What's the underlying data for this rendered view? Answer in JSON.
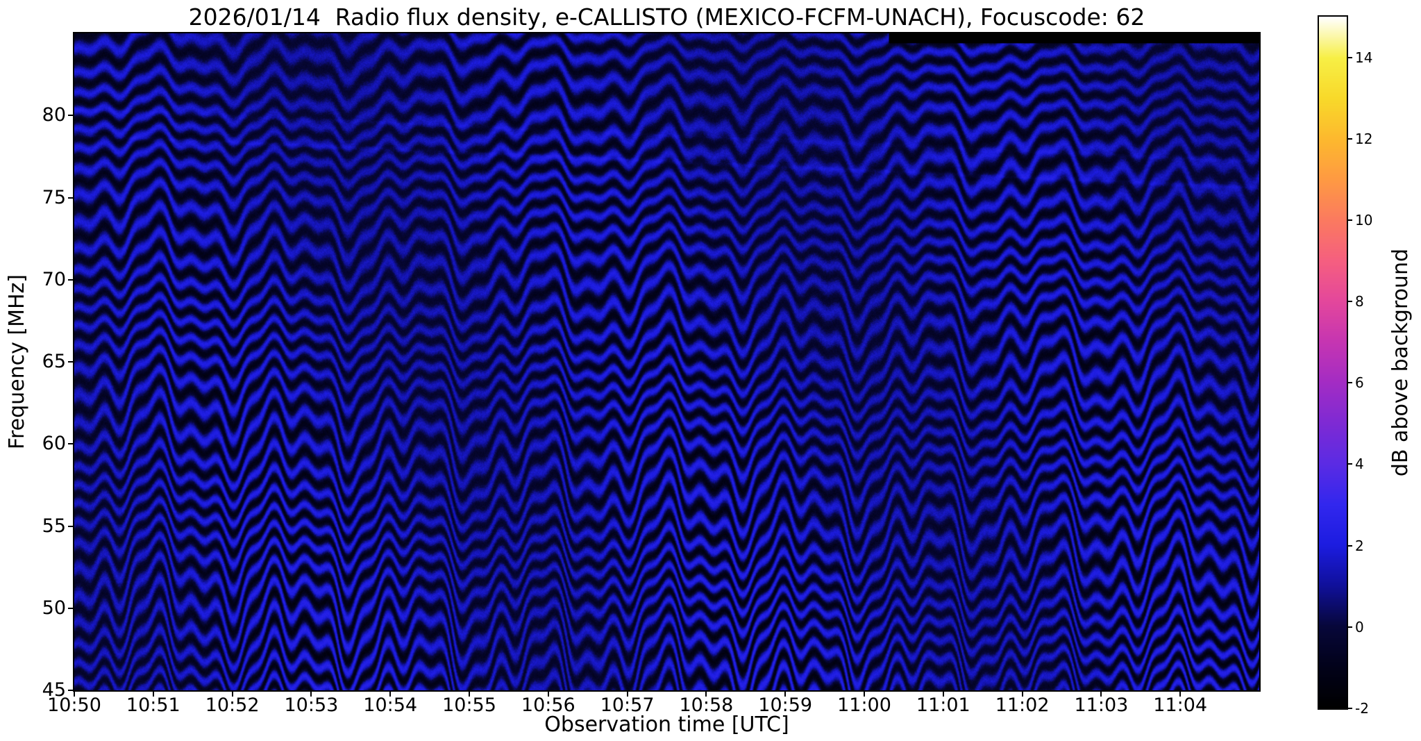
{
  "figure": {
    "title": "2026/01/14  Radio flux density, e-CALLISTO (MEXICO-FCFM-UNACH), Focuscode: 62",
    "xlabel": "Observation time [UTC]",
    "ylabel": "Frequency [MHz]",
    "colorbar_label": "dB above background"
  },
  "chart_data": {
    "type": "heatmap",
    "title": "2026/01/14  Radio flux density, e-CALLISTO (MEXICO-FCFM-UNACH), Focuscode: 62",
    "xlabel": "Observation time [UTC]",
    "ylabel": "Frequency [MHz]",
    "x_ticks": [
      "10:50",
      "10:51",
      "10:52",
      "10:53",
      "10:54",
      "10:55",
      "10:56",
      "10:57",
      "10:58",
      "10:59",
      "11:00",
      "11:01",
      "11:02",
      "11:03",
      "11:04"
    ],
    "x_axis_total_minutes": 15,
    "x_range_utc": [
      "10:50:00",
      "11:05:00"
    ],
    "y_ticks": [
      80,
      75,
      70,
      65,
      60,
      55,
      50,
      45
    ],
    "y_range_mhz": [
      45,
      85
    ],
    "grid": false,
    "legend": "none",
    "colorbar": {
      "label": "dB above background",
      "ticks": [
        14,
        12,
        10,
        8,
        6,
        4,
        2,
        0,
        -2
      ],
      "range": [
        -2,
        15
      ],
      "colormap_stops": [
        {
          "v": -2.0,
          "c": "#000000"
        },
        {
          "v": -1.0,
          "c": "#02021a"
        },
        {
          "v": 0.0,
          "c": "#07073a"
        },
        {
          "v": 1.0,
          "c": "#10109a"
        },
        {
          "v": 2.0,
          "c": "#1c1ce0"
        },
        {
          "v": 3.0,
          "c": "#3227ee"
        },
        {
          "v": 4.0,
          "c": "#5b2be4"
        },
        {
          "v": 5.0,
          "c": "#7e2ad4"
        },
        {
          "v": 6.0,
          "c": "#a32cc4"
        },
        {
          "v": 7.0,
          "c": "#c635b2"
        },
        {
          "v": 8.0,
          "c": "#e4479c"
        },
        {
          "v": 9.0,
          "c": "#f55f80"
        },
        {
          "v": 10.0,
          "c": "#fb7a60"
        },
        {
          "v": 11.0,
          "c": "#fe9a43"
        },
        {
          "v": 12.0,
          "c": "#fdb92e"
        },
        {
          "v": 13.0,
          "c": "#f8d92a"
        },
        {
          "v": 14.0,
          "c": "#f7ef46"
        },
        {
          "v": 15.0,
          "c": "#ffffff"
        }
      ]
    },
    "values_note": "Dynamic radio spectrum dominated by wavy horizontal interference fringes spanning roughly -2 to +3 dB above background over 45-85 MHz; undulation amplitude grows toward lower frequencies; no strong solar burst features visible; solid black (no-data) strip along the very top right of the image.",
    "pattern": {
      "duration_s": 900,
      "fringe_spacing_mhz": 1.32,
      "base_db": 0.5,
      "fringe_amp_db": 1.7,
      "noise_amp_db": 0.5,
      "wobble_components": [
        {
          "period_s": 97,
          "amp_mhz": 1.05,
          "phase": 0.6
        },
        {
          "period_s": 43,
          "amp_mhz": 0.6,
          "phase": 2.2
        },
        {
          "period_s": 21.5,
          "amp_mhz": 0.38,
          "phase": 4.1
        }
      ],
      "wobble_depth_gain": [
        0.5,
        0.95
      ],
      "drift_amp_mhz": 0.4,
      "envelope": [
        0.78,
        0.22
      ],
      "depth_contrast": [
        0.85,
        0.3
      ],
      "diagonal_lines": [
        {
          "f_start": 78.8,
          "f_end": 75.6,
          "amp_db": 0.5
        },
        {
          "f_start": 80.4,
          "f_end": 77.2,
          "amp_db": 0.35
        }
      ]
    },
    "missing_data_strip": {
      "t_frac_start": 0.688,
      "f_start_mhz": 84.45
    }
  }
}
